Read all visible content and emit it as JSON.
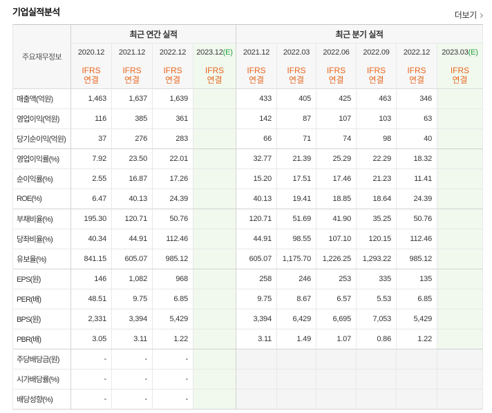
{
  "title": "기업실적분석",
  "more_link": {
    "label": "더보기",
    "icon": "chevron-right-icon"
  },
  "colors": {
    "basis_text": "#e8651c",
    "estimate_text": "#1f9e3c",
    "estimate_bg": "#f1f9ee",
    "header_bg": "#f7f7f7",
    "unavailable_bg": "#f5f5f5"
  },
  "table": {
    "row_header_label": "주요재무정보",
    "annual": {
      "group_label": "최근 연간 실적",
      "periods": [
        {
          "date": "2020.12",
          "estimate": null,
          "basis": [
            "IFRS",
            "연결"
          ]
        },
        {
          "date": "2021.12",
          "estimate": null,
          "basis": [
            "IFRS",
            "연결"
          ]
        },
        {
          "date": "2022.12",
          "estimate": null,
          "basis": [
            "IFRS",
            "연결"
          ]
        },
        {
          "date": "2023.12",
          "estimate": "(E)",
          "basis": [
            "IFRS",
            "연결"
          ]
        }
      ]
    },
    "quarter": {
      "group_label": "최근 분기 실적",
      "periods": [
        {
          "date": "2021.12",
          "estimate": null,
          "basis": [
            "IFRS",
            "연결"
          ]
        },
        {
          "date": "2022.03",
          "estimate": null,
          "basis": [
            "IFRS",
            "연결"
          ]
        },
        {
          "date": "2022.06",
          "estimate": null,
          "basis": [
            "IFRS",
            "연결"
          ]
        },
        {
          "date": "2022.09",
          "estimate": null,
          "basis": [
            "IFRS",
            "연결"
          ]
        },
        {
          "date": "2022.12",
          "estimate": null,
          "basis": [
            "IFRS",
            "연결"
          ]
        },
        {
          "date": "2023.03",
          "estimate": "(E)",
          "basis": [
            "IFRS",
            "연결"
          ]
        }
      ]
    },
    "row_groups": [
      {
        "rows": [
          {
            "label": "매출액(억원)",
            "annual": [
              "1,463",
              "1,637",
              "1,639",
              null
            ],
            "quarter": [
              "433",
              "405",
              "425",
              "463",
              "346",
              null
            ]
          },
          {
            "label": "영업이익(억원)",
            "annual": [
              "116",
              "385",
              "361",
              null
            ],
            "quarter": [
              "142",
              "87",
              "107",
              "103",
              "63",
              null
            ]
          },
          {
            "label": "당기순이익(억원)",
            "annual": [
              "37",
              "276",
              "283",
              null
            ],
            "quarter": [
              "66",
              "71",
              "74",
              "98",
              "40",
              null
            ]
          }
        ]
      },
      {
        "rows": [
          {
            "label": "영업이익률(%)",
            "annual": [
              "7.92",
              "23.50",
              "22.01",
              null
            ],
            "quarter": [
              "32.77",
              "21.39",
              "25.29",
              "22.29",
              "18.32",
              null
            ]
          },
          {
            "label": "순이익률(%)",
            "annual": [
              "2.55",
              "16.87",
              "17.26",
              null
            ],
            "quarter": [
              "15.20",
              "17.51",
              "17.46",
              "21.23",
              "11.41",
              null
            ]
          },
          {
            "label": "ROE(%)",
            "annual": [
              "6.47",
              "40.13",
              "24.39",
              null
            ],
            "quarter": [
              "40.13",
              "19.41",
              "18.85",
              "18.64",
              "24.39",
              null
            ]
          }
        ]
      },
      {
        "rows": [
          {
            "label": "부채비율(%)",
            "annual": [
              "195.30",
              "120.71",
              "50.76",
              null
            ],
            "quarter": [
              "120.71",
              "51.69",
              "41.90",
              "35.25",
              "50.76",
              null
            ]
          },
          {
            "label": "당좌비율(%)",
            "annual": [
              "40.34",
              "44.91",
              "112.46",
              null
            ],
            "quarter": [
              "44.91",
              "98.55",
              "107.10",
              "120.15",
              "112.46",
              null
            ]
          },
          {
            "label": "유보율(%)",
            "annual": [
              "841.15",
              "605.07",
              "985.12",
              null
            ],
            "quarter": [
              "605.07",
              "1,175.70",
              "1,226.25",
              "1,293.22",
              "985.12",
              null
            ]
          }
        ]
      },
      {
        "rows": [
          {
            "label": "EPS(원)",
            "annual": [
              "146",
              "1,082",
              "968",
              null
            ],
            "quarter": [
              "258",
              "246",
              "253",
              "335",
              "135",
              null
            ]
          },
          {
            "label": "PER(배)",
            "annual": [
              "48.51",
              "9.75",
              "6.85",
              null
            ],
            "quarter": [
              "9.75",
              "8.67",
              "6.57",
              "5.53",
              "6.85",
              null
            ]
          },
          {
            "label": "BPS(원)",
            "annual": [
              "2,331",
              "3,394",
              "5,429",
              null
            ],
            "quarter": [
              "3,394",
              "6,429",
              "6,695",
              "7,053",
              "5,429",
              null
            ]
          },
          {
            "label": "PBR(배)",
            "annual": [
              "3.05",
              "3.11",
              "1.22",
              null
            ],
            "quarter": [
              "3.11",
              "1.49",
              "1.07",
              "0.86",
              "1.22",
              null
            ]
          }
        ]
      },
      {
        "rows": [
          {
            "label": "주당배당금(원)",
            "annual": [
              "-",
              "-",
              "-",
              null
            ],
            "quarter": null
          },
          {
            "label": "시가배당률(%)",
            "annual": [
              "-",
              "-",
              "-",
              null
            ],
            "quarter": null
          },
          {
            "label": "배당성향(%)",
            "annual": [
              "-",
              "-",
              "-",
              null
            ],
            "quarter": null
          }
        ]
      }
    ]
  }
}
